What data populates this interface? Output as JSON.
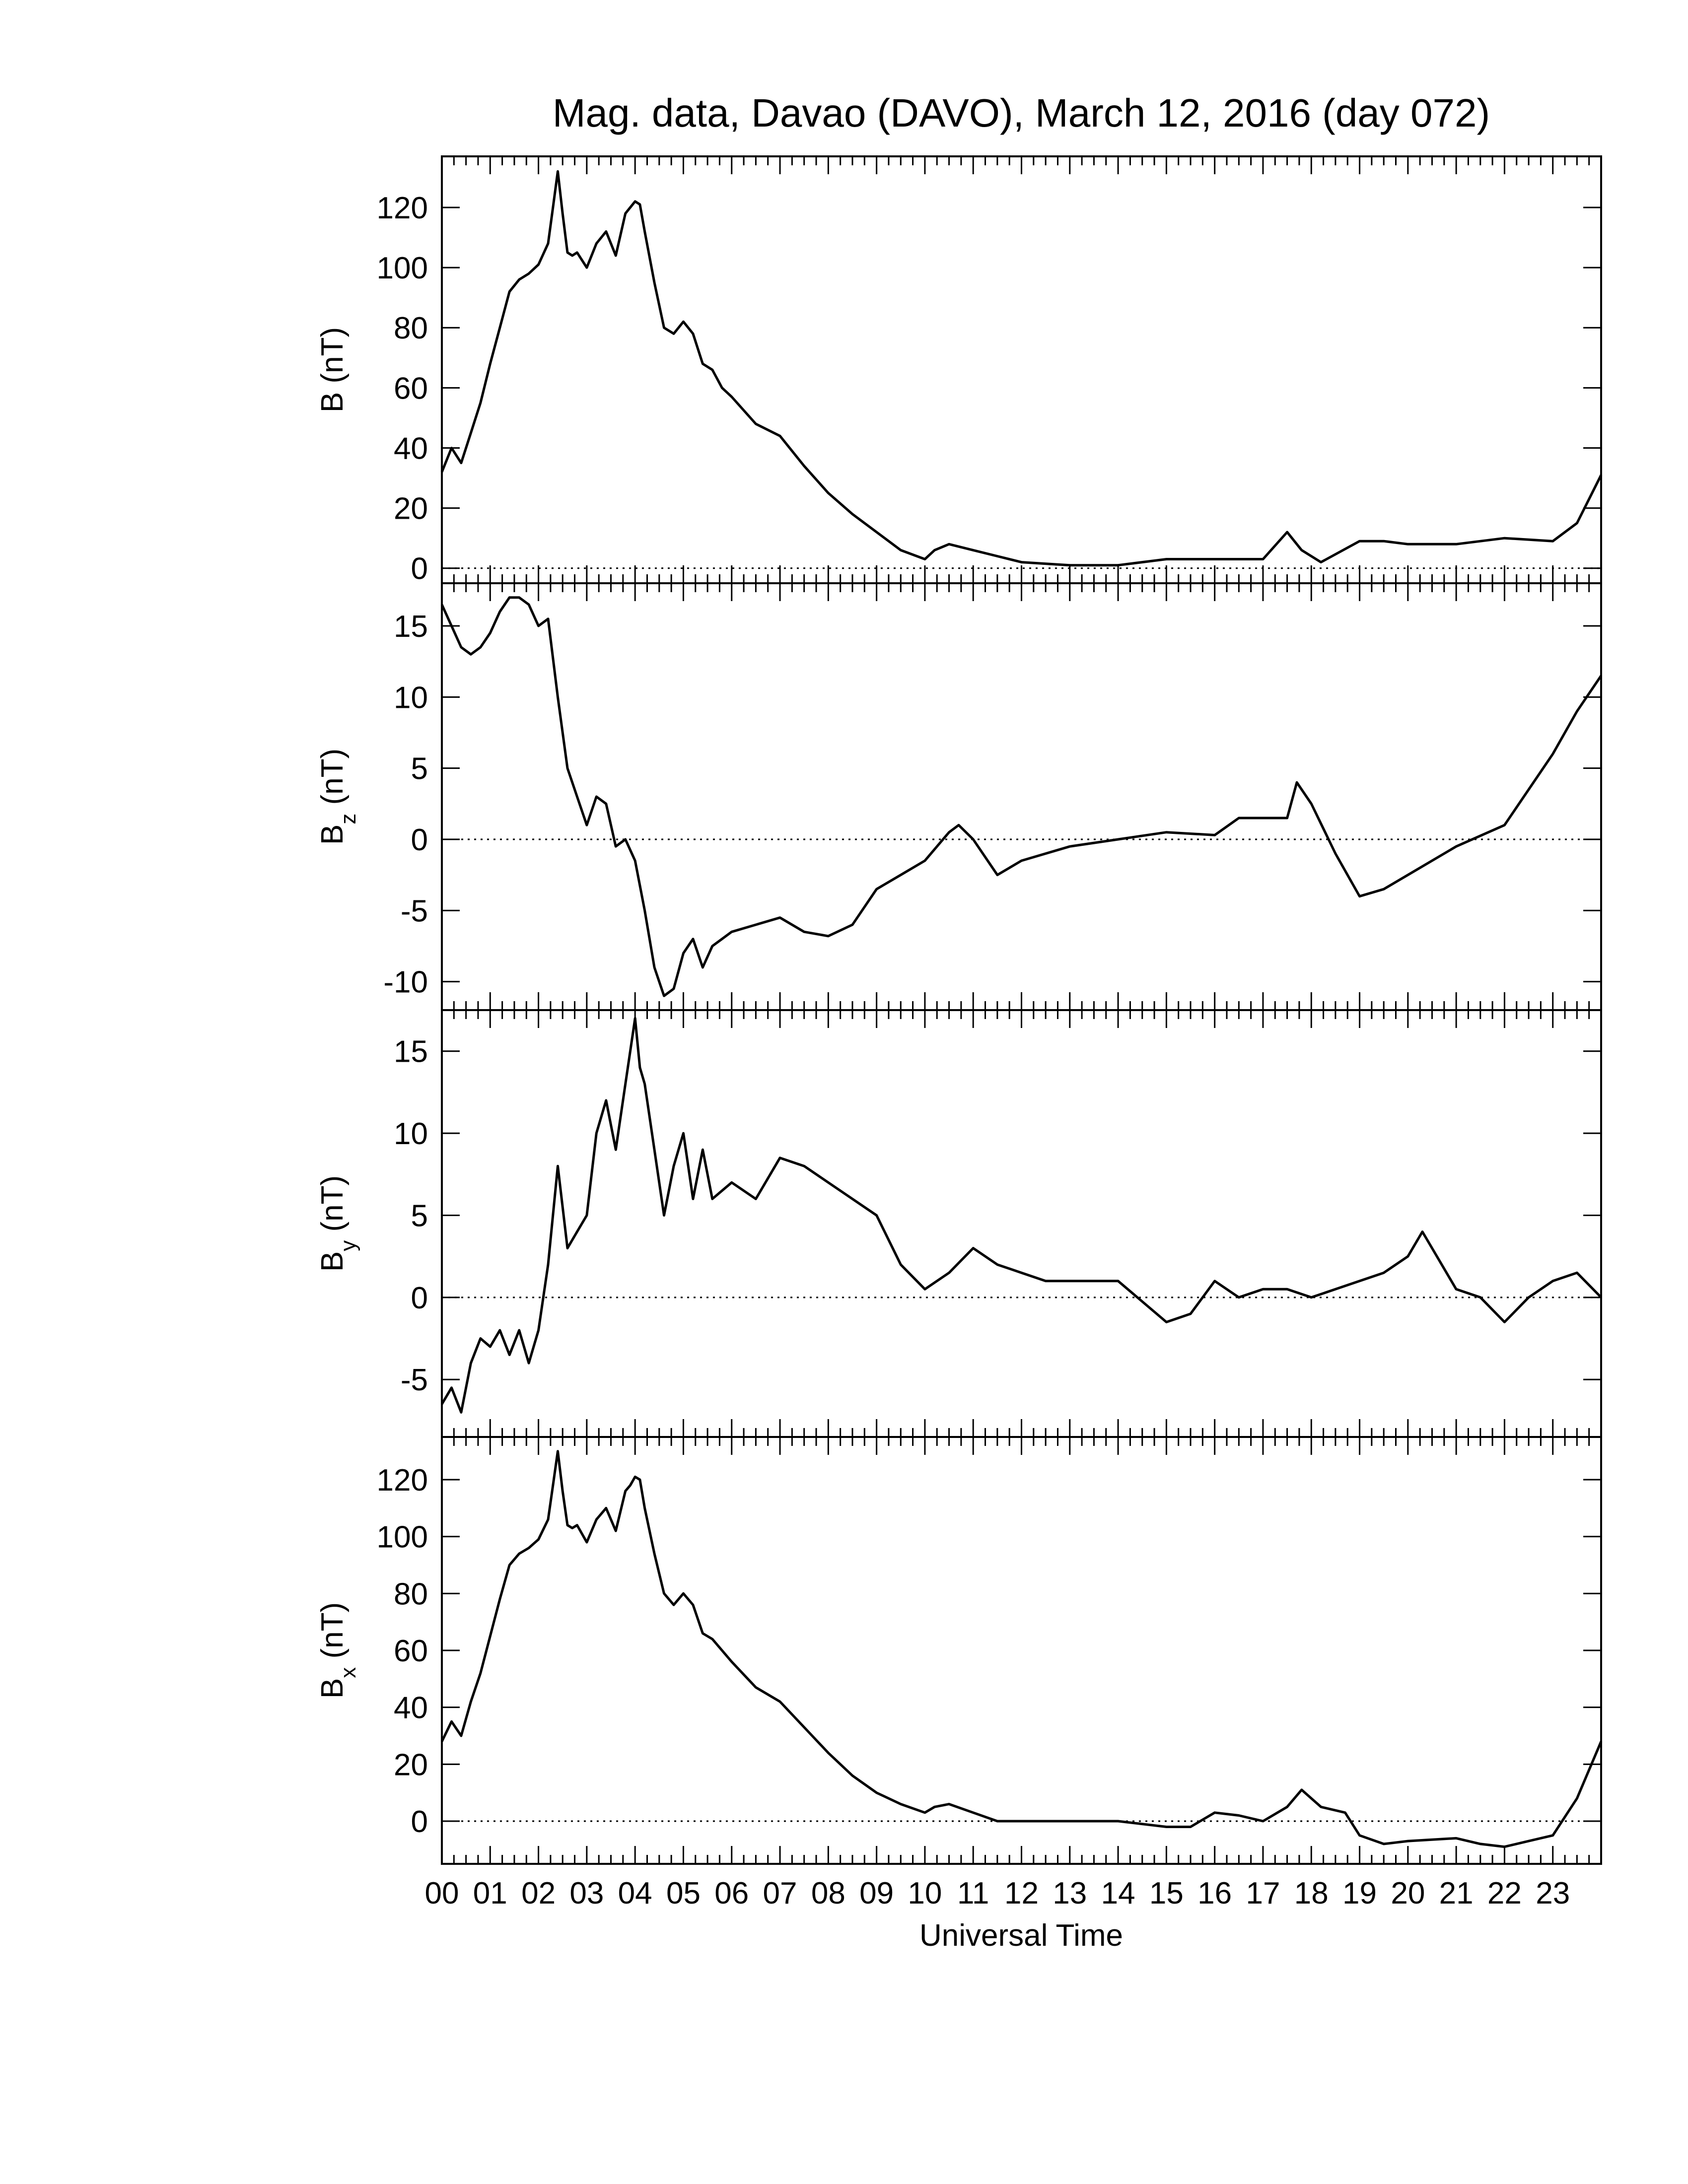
{
  "chart_data": {
    "type": "line",
    "title": "Mag. data, Davao (DAVO), March 12, 2016 (day 072)",
    "xlabel": "Universal Time",
    "xlim": [
      0,
      24
    ],
    "x_tick_labels": [
      "00",
      "01",
      "02",
      "03",
      "04",
      "05",
      "06",
      "07",
      "08",
      "09",
      "10",
      "11",
      "12",
      "13",
      "14",
      "15",
      "16",
      "17",
      "18",
      "19",
      "20",
      "21",
      "22",
      "23"
    ],
    "line_color": "#000000",
    "panels": [
      {
        "id": "B",
        "ylabel_main": "B",
        "ylabel_sub": "",
        "ylabel_unit": "(nT)",
        "ylim": [
          -5,
          137
        ],
        "yticks": [
          0,
          20,
          40,
          60,
          80,
          100,
          120
        ],
        "zero_line": true,
        "series": [
          {
            "x": [
              0,
              0.2,
              0.4,
              0.6,
              0.8,
              1.0,
              1.2,
              1.4,
              1.6,
              1.8,
              2.0,
              2.2,
              2.3,
              2.4,
              2.5,
              2.6,
              2.7,
              2.8,
              3.0,
              3.2,
              3.4,
              3.6,
              3.8,
              3.9,
              4.0,
              4.1,
              4.2,
              4.4,
              4.6,
              4.8,
              5.0,
              5.2,
              5.4,
              5.6,
              5.8,
              6.0,
              6.5,
              7.0,
              7.5,
              8.0,
              8.5,
              9.0,
              9.5,
              10.0,
              10.2,
              10.5,
              11.0,
              11.5,
              12.0,
              13.0,
              14.0,
              15.0,
              16.0,
              17.0,
              17.5,
              17.8,
              18.2,
              19.0,
              19.5,
              20.0,
              21.0,
              22.0,
              23.0,
              23.5,
              24.0
            ],
            "y": [
              32,
              40,
              35,
              45,
              55,
              68,
              80,
              92,
              96,
              98,
              101,
              108,
              120,
              132,
              118,
              105,
              104,
              105,
              100,
              108,
              112,
              104,
              118,
              120,
              122,
              121,
              112,
              95,
              80,
              78,
              82,
              78,
              68,
              66,
              60,
              57,
              48,
              44,
              34,
              25,
              18,
              12,
              6,
              3,
              6,
              8,
              6,
              4,
              2,
              1,
              1,
              3,
              3,
              3,
              12,
              6,
              2,
              9,
              9,
              8,
              8,
              10,
              9,
              15,
              31
            ]
          }
        ]
      },
      {
        "id": "Bz",
        "ylabel_main": "B",
        "ylabel_sub": "z",
        "ylabel_unit": "(nT)",
        "ylim": [
          -12,
          18
        ],
        "yticks": [
          -10,
          -5,
          0,
          5,
          10,
          15
        ],
        "zero_line": true,
        "series": [
          {
            "x": [
              0,
              0.2,
              0.4,
              0.6,
              0.8,
              1.0,
              1.2,
              1.4,
              1.6,
              1.8,
              2.0,
              2.2,
              2.4,
              2.6,
              2.8,
              3.0,
              3.2,
              3.4,
              3.6,
              3.8,
              4.0,
              4.2,
              4.4,
              4.6,
              4.8,
              5.0,
              5.2,
              5.4,
              5.6,
              5.8,
              6.0,
              6.5,
              7.0,
              7.5,
              8.0,
              8.5,
              9.0,
              9.5,
              10.0,
              10.5,
              10.7,
              11.0,
              11.5,
              12.0,
              13.0,
              14.0,
              15.0,
              16.0,
              16.5,
              17.0,
              17.5,
              17.7,
              18.0,
              18.5,
              19.0,
              19.5,
              20.0,
              21.0,
              22.0,
              23.0,
              23.5,
              24.0
            ],
            "y": [
              16.5,
              15,
              13.5,
              13,
              13.5,
              14.5,
              16,
              17,
              17,
              16.5,
              15,
              15.5,
              10,
              5,
              3,
              1,
              3,
              2.5,
              -0.5,
              0,
              -1.5,
              -5,
              -9,
              -11,
              -10.5,
              -8,
              -7,
              -9,
              -7.5,
              -7,
              -6.5,
              -6,
              -5.5,
              -6.5,
              -6.8,
              -6,
              -3.5,
              -2.5,
              -1.5,
              0.5,
              1,
              0,
              -2.5,
              -1.5,
              -0.5,
              0,
              0.5,
              0.3,
              1.5,
              1.5,
              1.5,
              4,
              2.5,
              -1,
              -4,
              -3.5,
              -2.5,
              -0.5,
              1,
              6,
              9,
              11.5
            ]
          }
        ]
      },
      {
        "id": "By",
        "ylabel_main": "B",
        "ylabel_sub": "y",
        "ylabel_unit": "(nT)",
        "ylim": [
          -8.5,
          17.5
        ],
        "yticks": [
          -5,
          0,
          5,
          10,
          15
        ],
        "zero_line": true,
        "series": [
          {
            "x": [
              0,
              0.2,
              0.4,
              0.6,
              0.8,
              1.0,
              1.2,
              1.4,
              1.6,
              1.8,
              2.0,
              2.2,
              2.4,
              2.6,
              2.8,
              3.0,
              3.2,
              3.4,
              3.6,
              3.8,
              4.0,
              4.1,
              4.2,
              4.4,
              4.6,
              4.8,
              5.0,
              5.2,
              5.4,
              5.6,
              5.8,
              6.0,
              6.5,
              7.0,
              7.5,
              8.0,
              8.5,
              9.0,
              9.5,
              10.0,
              10.5,
              11.0,
              11.5,
              12.0,
              12.5,
              13.0,
              14.0,
              15.0,
              15.5,
              16.0,
              16.5,
              17.0,
              17.5,
              18.0,
              18.5,
              19.0,
              19.5,
              20.0,
              20.3,
              20.5,
              21.0,
              21.5,
              22.0,
              22.5,
              23.0,
              23.5,
              24.0
            ],
            "y": [
              -6.5,
              -5.5,
              -7,
              -4,
              -2.5,
              -3,
              -2,
              -3.5,
              -2,
              -4,
              -2,
              2,
              8,
              3,
              4,
              5,
              10,
              12,
              9,
              13,
              17,
              14,
              13,
              9,
              5,
              8,
              10,
              6,
              9,
              6,
              6.5,
              7,
              6,
              8.5,
              8,
              7,
              6,
              5,
              2,
              0.5,
              1.5,
              3,
              2,
              1.5,
              1,
              1,
              1,
              -1.5,
              -1,
              1,
              0,
              0.5,
              0.5,
              0,
              0.5,
              1,
              1.5,
              2.5,
              4,
              3,
              0.5,
              0,
              -1.5,
              0,
              1,
              1.5,
              0
            ]
          }
        ]
      },
      {
        "id": "Bx",
        "ylabel_main": "B",
        "ylabel_sub": "x",
        "ylabel_unit": "(nT)",
        "ylim": [
          -15,
          135
        ],
        "yticks": [
          0,
          20,
          40,
          60,
          80,
          100,
          120
        ],
        "zero_line": true,
        "series": [
          {
            "x": [
              0,
              0.2,
              0.4,
              0.6,
              0.8,
              1.0,
              1.2,
              1.4,
              1.6,
              1.8,
              2.0,
              2.2,
              2.3,
              2.4,
              2.5,
              2.6,
              2.7,
              2.8,
              3.0,
              3.2,
              3.4,
              3.6,
              3.8,
              3.9,
              4.0,
              4.1,
              4.2,
              4.4,
              4.6,
              4.8,
              5.0,
              5.2,
              5.4,
              5.6,
              5.8,
              6.0,
              6.5,
              7.0,
              7.5,
              8.0,
              8.5,
              9.0,
              9.5,
              10.0,
              10.2,
              10.5,
              11.0,
              11.5,
              12.0,
              13.0,
              14.0,
              15.0,
              15.5,
              16.0,
              16.5,
              17.0,
              17.5,
              17.8,
              18.2,
              18.7,
              19.0,
              19.5,
              20.0,
              21.0,
              21.5,
              22.0,
              22.5,
              23.0,
              23.5,
              24.0
            ],
            "y": [
              28,
              35,
              30,
              42,
              52,
              65,
              78,
              90,
              94,
              96,
              99,
              106,
              118,
              130,
              116,
              104,
              103,
              104,
              98,
              106,
              110,
              102,
              116,
              118,
              121,
              120,
              110,
              94,
              80,
              76,
              80,
              76,
              66,
              64,
              60,
              56,
              47,
              42,
              33,
              24,
              16,
              10,
              6,
              3,
              5,
              6,
              3,
              0,
              0,
              0,
              0,
              -2,
              -2,
              3,
              2,
              0,
              5,
              11,
              5,
              3,
              -5,
              -8,
              -7,
              -6,
              -8,
              -9,
              -7,
              -5,
              8,
              28
            ]
          }
        ]
      }
    ]
  }
}
